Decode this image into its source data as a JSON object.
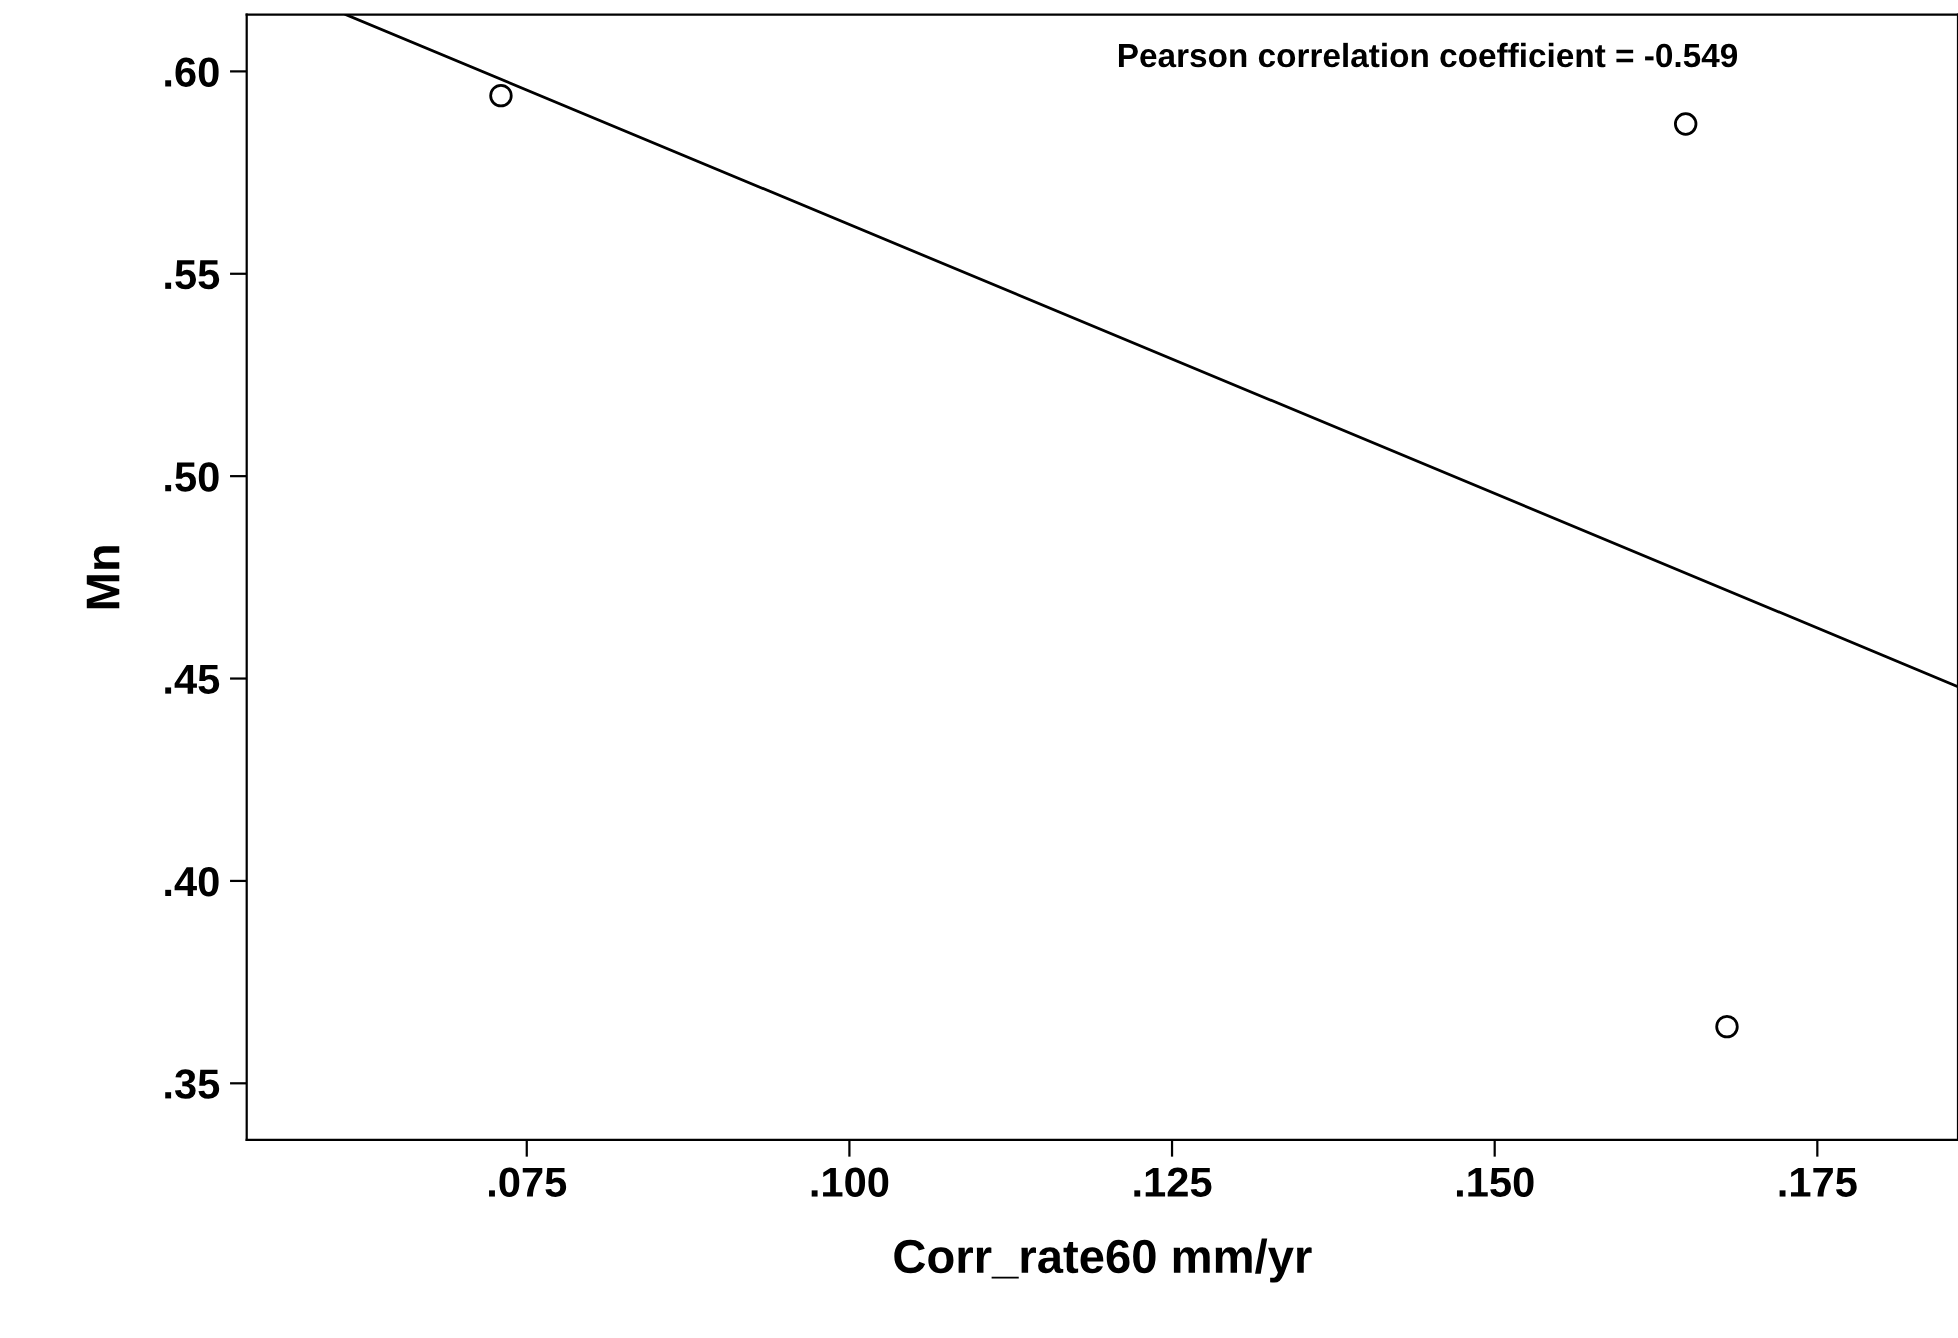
{
  "chart_data": {
    "type": "scatter",
    "xlabel": "Corr_rate60 mm/yr",
    "ylabel": "Mn",
    "annotations": [
      "Pearson correlation coefficient = -0.549"
    ],
    "series": [
      {
        "color": "#000000",
        "marker": "circle",
        "x": [
          0.073,
          0.1648,
          0.168
        ],
        "values": [
          0.594,
          0.587,
          0.364
        ]
      },
      {
        "type": "line",
        "color": "#000000",
        "marker": "none",
        "line_style": "solid",
        "x": [
          0.061,
          0.1859
        ],
        "values": [
          0.614,
          0.448
        ]
      }
    ],
    "xlim": [
      0.0533,
      0.1859
    ],
    "ylim": [
      0.336,
      0.614
    ],
    "xticks": [
      {
        "value": 0.075,
        "label": ".075"
      },
      {
        "value": 0.1,
        "label": ".100"
      },
      {
        "value": 0.125,
        "label": ".125"
      },
      {
        "value": 0.15,
        "label": ".150"
      },
      {
        "value": 0.175,
        "label": ".175"
      }
    ],
    "yticks": [
      {
        "value": 0.35,
        "label": ".35"
      },
      {
        "value": 0.4,
        "label": ".40"
      },
      {
        "value": 0.45,
        "label": ".45"
      },
      {
        "value": 0.5,
        "label": ".50"
      },
      {
        "value": 0.55,
        "label": ".55"
      },
      {
        "value": 0.6,
        "label": ".60"
      }
    ],
    "grid": false
  }
}
